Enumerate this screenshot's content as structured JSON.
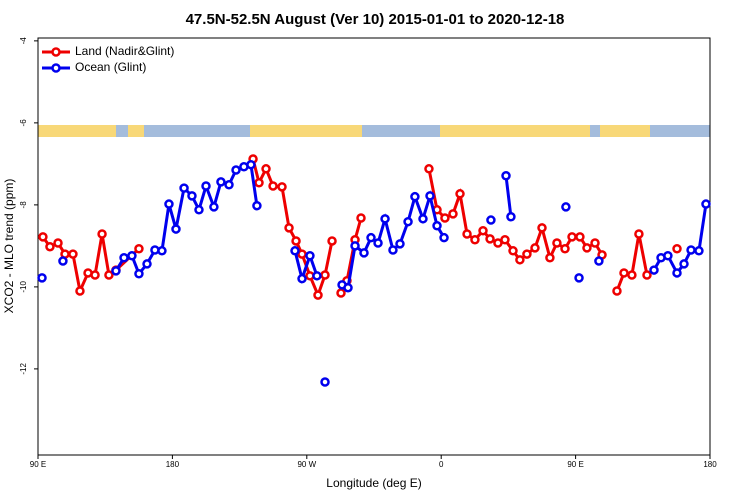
{
  "chart_data": {
    "type": "line",
    "title": "47.5N-52.5N August (Ver 10)   2015-01-01 to 2020-12-18",
    "xlabel": "Longitude (deg E)",
    "ylabel": "XCO2 - MLO trend (ppm)",
    "xlim": [
      90,
      540
    ],
    "ylim": [
      -14.1,
      -3.93
    ],
    "xticks": [
      {
        "value": 90,
        "label": "90 E"
      },
      {
        "value": 180,
        "label": "180"
      },
      {
        "value": 270,
        "label": "90 W"
      },
      {
        "value": 360,
        "label": "0"
      },
      {
        "value": 450,
        "label": "90 E"
      },
      {
        "value": 540,
        "label": "180"
      }
    ],
    "yticks": [
      -12,
      -10,
      -8,
      -6,
      -4
    ],
    "legend": "top-left",
    "series": [
      {
        "name": "Land (Nadir&Glint)",
        "color": "#ee0000",
        "x": [
          93.3,
          98.0,
          103.4,
          108.1,
          113.4,
          118.1,
          123.5,
          128.2,
          132.9,
          137.5,
          142.2,
          157.6,
          null,
          234.0,
          238.0,
          242.7,
          247.4,
          253.4,
          258.1,
          262.8,
          266.8,
          272.1,
          277.5,
          282.2,
          286.9,
          null,
          292.9,
          296.9,
          302.3,
          306.3,
          null,
          351.8,
          357.2,
          362.5,
          367.9,
          372.6,
          377.3,
          382.6,
          388.0,
          392.7,
          398.0,
          402.7,
          408.1,
          412.7,
          417.4,
          422.8,
          427.5,
          432.8,
          437.5,
          442.9,
          447.6,
          452.9,
          457.6,
          463.0,
          467.7,
          null,
          477.7,
          482.4,
          487.7,
          492.4,
          497.8,
          null,
          517.9
        ],
        "values": [
          -8.78,
          -9.02,
          -8.93,
          -9.2,
          -9.2,
          -10.1,
          -9.66,
          -9.71,
          -8.71,
          -9.71,
          -9.59,
          -9.07,
          null,
          -6.88,
          -7.46,
          -7.12,
          -7.54,
          -7.56,
          -8.56,
          -8.88,
          -9.2,
          -9.73,
          -10.2,
          -9.71,
          -8.88,
          null,
          -10.15,
          -9.85,
          -8.85,
          -8.32,
          null,
          -7.12,
          -8.12,
          -8.32,
          -8.22,
          -7.73,
          -8.71,
          -8.85,
          -8.63,
          -8.83,
          -8.93,
          -8.85,
          -9.12,
          -9.34,
          -9.2,
          -9.05,
          -8.56,
          -9.29,
          -8.93,
          -9.07,
          -8.78,
          -8.78,
          -9.05,
          -8.93,
          -9.22,
          null,
          -10.1,
          -9.66,
          -9.71,
          -8.71,
          -9.71,
          null,
          -9.07
        ]
      },
      {
        "name": "Ocean (Glint)",
        "color": "#0000ee",
        "x": [
          92.7,
          null,
          106.7,
          null,
          142.2,
          147.6,
          152.9,
          157.6,
          163.0,
          168.3,
          173.0,
          177.7,
          182.4,
          187.8,
          193.1,
          197.8,
          202.5,
          207.8,
          212.5,
          217.9,
          222.6,
          227.9,
          232.6,
          236.6,
          null,
          262.1,
          266.8,
          272.1,
          276.8,
          null,
          282.2,
          null,
          293.6,
          297.6,
          302.3,
          308.3,
          313.0,
          317.7,
          322.4,
          327.7,
          332.4,
          337.8,
          342.4,
          347.8,
          352.5,
          357.2,
          361.9,
          null,
          393.3,
          null,
          403.4,
          406.7,
          null,
          443.5,
          null,
          452.3,
          null,
          465.6,
          null,
          502.5,
          507.2,
          511.8,
          517.9,
          522.6,
          527.3,
          532.6,
          537.3
        ],
        "values": [
          -9.78,
          null,
          -9.37,
          null,
          -9.61,
          -9.29,
          -9.24,
          -9.68,
          -9.44,
          -9.1,
          -9.12,
          -7.98,
          -8.59,
          -7.59,
          -7.78,
          -8.12,
          -7.54,
          -8.05,
          -7.44,
          -7.51,
          -7.15,
          -7.07,
          -7.02,
          -8.02,
          null,
          -9.12,
          -9.8,
          -9.24,
          -9.73,
          null,
          -12.32,
          null,
          -9.95,
          -10.02,
          -9.0,
          -9.17,
          -8.8,
          -8.93,
          -8.34,
          -9.1,
          -8.95,
          -8.41,
          -7.8,
          -8.34,
          -7.78,
          -8.51,
          -8.8,
          null,
          -8.37,
          null,
          -7.29,
          -8.29,
          null,
          -8.05,
          null,
          -9.78,
          null,
          -9.37,
          null,
          -9.59,
          -9.29,
          -9.24,
          -9.66,
          -9.44,
          -9.1,
          -9.12,
          -7.98
        ]
      }
    ]
  }
}
